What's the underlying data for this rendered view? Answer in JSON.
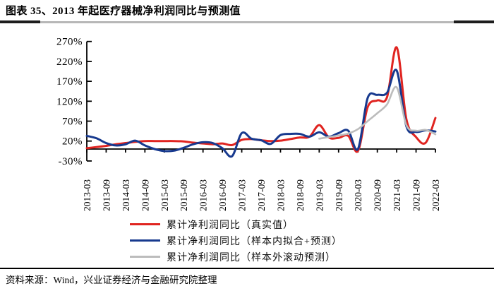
{
  "page": {
    "title": "图表 35、2013 年起医疗器械净利润同比与预测值",
    "source": "资料来源：Wind，兴业证券经济与金融研究院整理"
  },
  "chart_data": {
    "type": "line",
    "title": "2013 年起医疗器械净利润同比与预测值",
    "unit": "%",
    "grid": false,
    "legend_position": "bottom-center",
    "axis_color": "#000000",
    "ylim": [
      -30,
      270
    ],
    "y_ticks_percent": [
      270,
      220,
      170,
      120,
      70,
      20,
      -30
    ],
    "y_axis_tick_labels": [
      "270%",
      "220%",
      "170%",
      "120%",
      "70%",
      "20%",
      "-30%"
    ],
    "x": [
      "2013-03",
      "2013-06",
      "2013-09",
      "2013-12",
      "2014-03",
      "2014-06",
      "2014-09",
      "2014-12",
      "2015-03",
      "2015-06",
      "2015-09",
      "2015-12",
      "2016-03",
      "2016-06",
      "2016-09",
      "2016-12",
      "2017-03",
      "2017-06",
      "2017-09",
      "2017-12",
      "2018-03",
      "2018-06",
      "2018-09",
      "2018-12",
      "2019-03",
      "2019-06",
      "2019-09",
      "2019-12",
      "2020-03",
      "2020-06",
      "2020-09",
      "2020-12",
      "2021-03",
      "2021-06",
      "2021-09",
      "2021-12",
      "2022-03"
    ],
    "x_axis_tick_labels": [
      "2013-03",
      "2013-09",
      "2014-03",
      "2014-09",
      "2015-03",
      "2015-09",
      "2016-03",
      "2016-09",
      "2017-03",
      "2017-09",
      "2018-03",
      "2018-09",
      "2019-03",
      "2019-09",
      "2020-03",
      "2020-09",
      "2021-03",
      "2021-09",
      "2022-03"
    ],
    "series": [
      {
        "name": "累计净利润同比（真实值）",
        "color": "#e02420",
        "values": [
          2,
          5,
          8,
          12,
          15,
          18,
          20,
          20,
          20,
          20,
          19,
          16,
          14,
          12,
          14,
          10,
          23,
          25,
          22,
          20,
          21,
          25,
          29,
          31,
          60,
          29,
          28,
          33,
          -5,
          105,
          122,
          130,
          255,
          75,
          30,
          16,
          78
        ]
      },
      {
        "name": "累计净利润同比（样本内拟合+预测）",
        "color": "#17398e",
        "values": [
          33,
          27,
          15,
          9,
          12,
          21,
          9,
          0,
          -5,
          -4,
          3,
          12,
          17,
          15,
          2,
          -18,
          40,
          26,
          22,
          13,
          35,
          38,
          38,
          31,
          42,
          31,
          40,
          46,
          0,
          128,
          136,
          141,
          197,
          57,
          43,
          47,
          44
        ]
      },
      {
        "name": "累计净利润同比（样本外滚动预测）",
        "color": "#bcbcbc",
        "values": [
          null,
          null,
          null,
          null,
          null,
          null,
          null,
          null,
          null,
          null,
          null,
          null,
          null,
          null,
          null,
          null,
          null,
          null,
          null,
          null,
          null,
          null,
          null,
          null,
          26,
          30,
          34,
          39,
          50,
          70,
          90,
          112,
          155,
          60,
          46,
          48,
          37
        ]
      }
    ]
  }
}
